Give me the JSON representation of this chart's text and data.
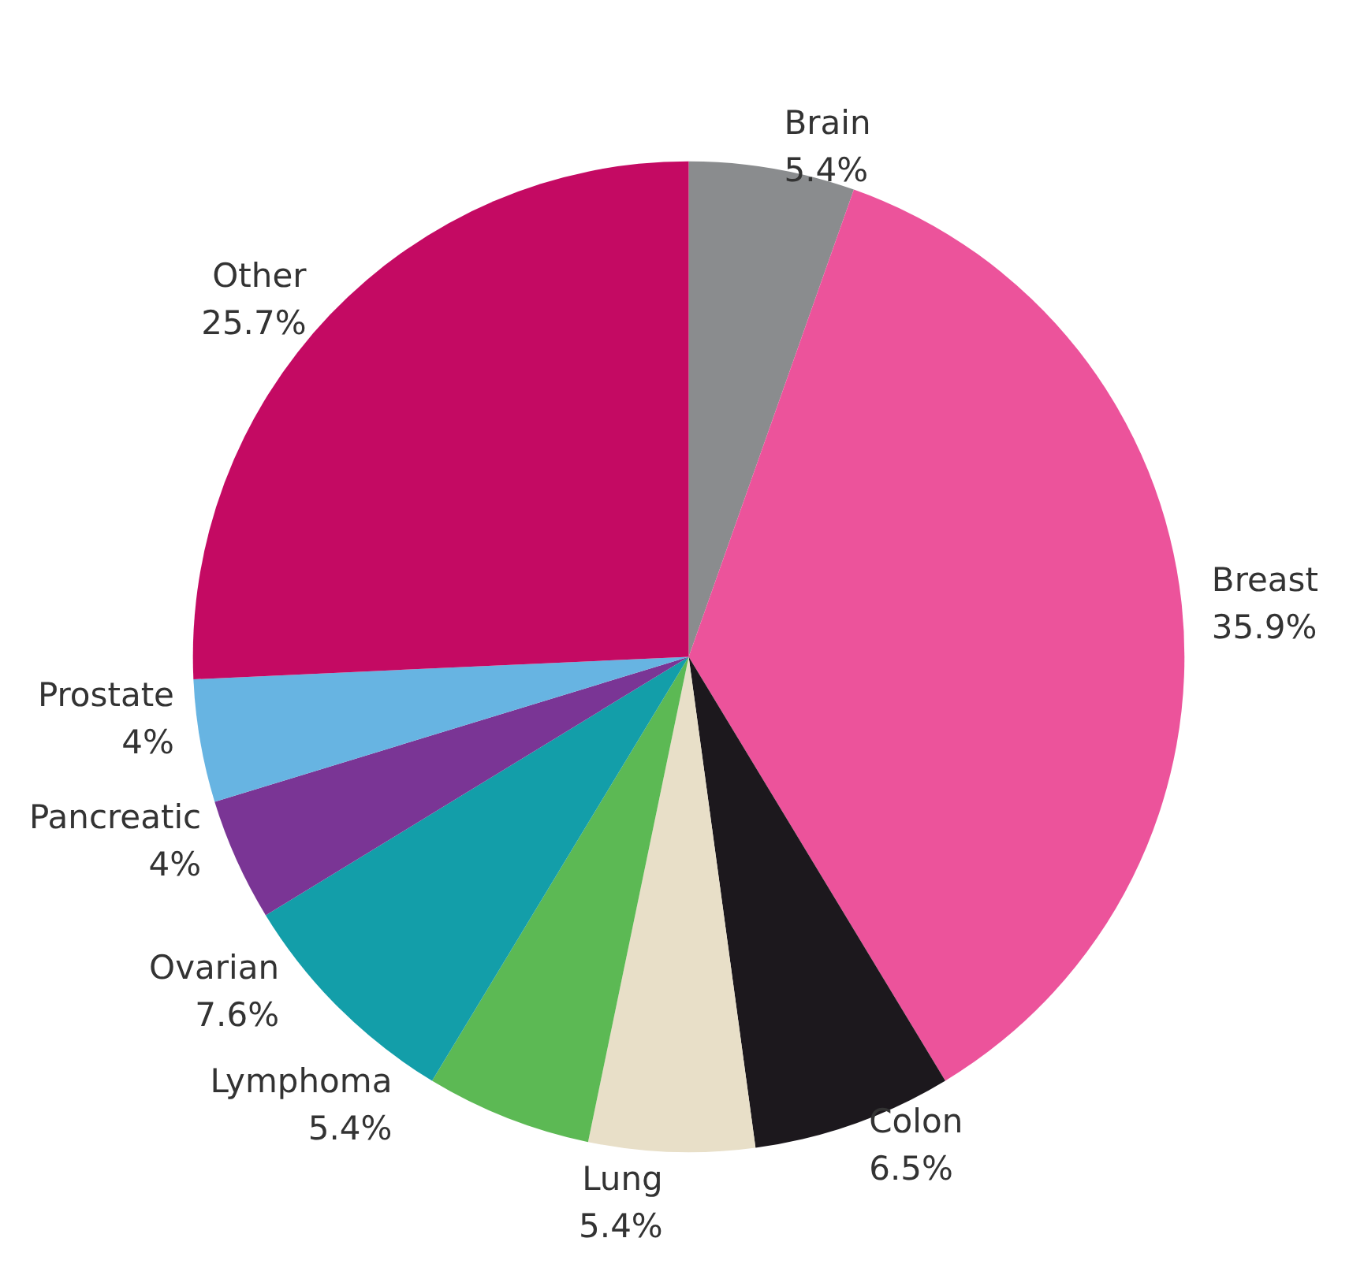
{
  "chart_data": {
    "type": "pie",
    "categories": [
      "Brain",
      "Breast",
      "Colon",
      "Lung",
      "Lymphoma",
      "Ovarian",
      "Pancreatic",
      "Prostate",
      "Other"
    ],
    "values": [
      5.4,
      35.9,
      6.5,
      5.4,
      5.4,
      7.6,
      4,
      4,
      25.7
    ],
    "value_labels": [
      "5.4%",
      "35.9%",
      "6.5%",
      "5.4%",
      "5.4%",
      "7.6%",
      "4%",
      "4%",
      "25.7%"
    ],
    "colors": [
      "#8a8c8e",
      "#ec539b",
      "#1c181d",
      "#e8dfc8",
      "#5cb954",
      "#139ea9",
      "#7a3595",
      "#67b4e2",
      "#c40a63"
    ],
    "legend": false
  }
}
